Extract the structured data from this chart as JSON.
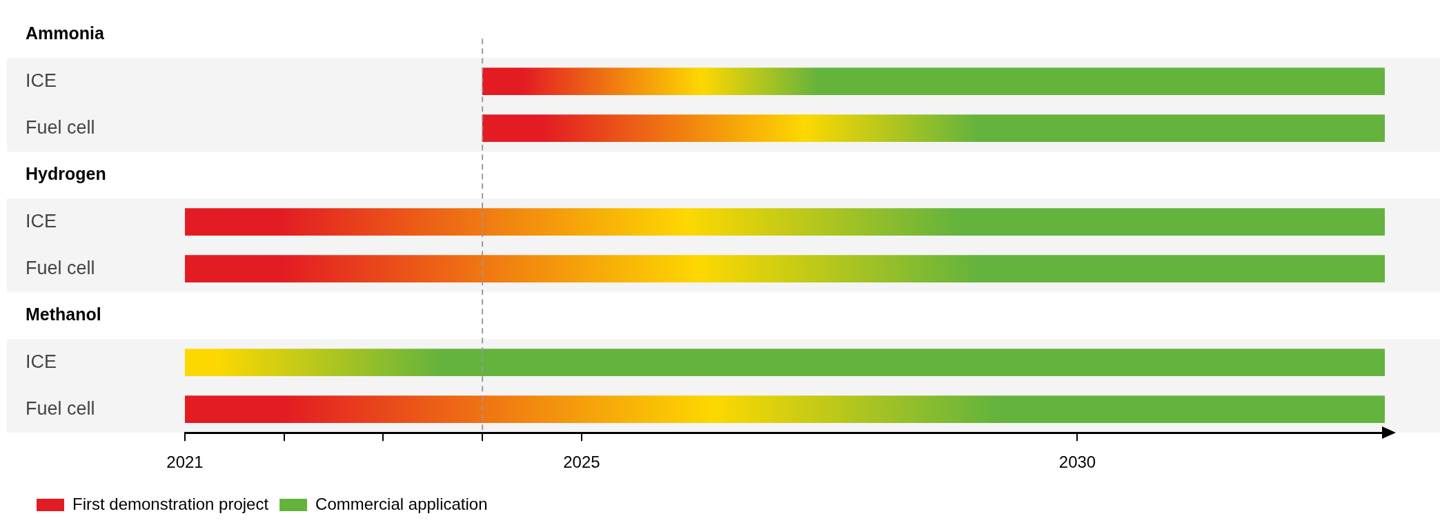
{
  "chart_data": {
    "type": "bar",
    "orientation": "horizontal",
    "categories": [
      "Ammonia",
      "ICE",
      "Fuel cell",
      "Hydrogen",
      "ICE",
      "Fuel cell",
      "Methanol",
      "ICE",
      "Fuel cell"
    ],
    "series": [
      {
        "name": "First demonstration project",
        "color": "#e31b23",
        "colors": [
          null,
          "#e31b23",
          "#e31b23",
          null,
          "#e31b23",
          "#e31b23",
          null,
          "#fdd800",
          "#e31b23"
        ],
        "base": [
          null,
          2024,
          2024,
          null,
          2021,
          2021,
          null,
          2021,
          2021
        ],
        "values": [
          null,
          3.4,
          5.0,
          null,
          7.8,
          8.0,
          null,
          2.6,
          8.2
        ]
      },
      {
        "name": "Commercial application",
        "color": "#63b33d",
        "base": [
          null,
          2027.4,
          2029.0,
          null,
          2028.8,
          2029.0,
          null,
          2023.6,
          2029.2
        ],
        "values": [
          null,
          5.7,
          4.1,
          null,
          4.3,
          4.1,
          null,
          9.5,
          3.9
        ]
      }
    ],
    "xlim": [
      2021,
      2033.1
    ],
    "xticks": [
      2021,
      {
        "value": 2022,
        "label": null
      },
      {
        "value": 2023,
        "label": null
      },
      {
        "value": 2024,
        "label": null
      },
      2025,
      2030
    ],
    "ref_lines": [
      {
        "axis": "x",
        "value": 2024,
        "color": "#999999",
        "line_style": "dashed"
      }
    ],
    "legend": "bottom left"
  }
}
